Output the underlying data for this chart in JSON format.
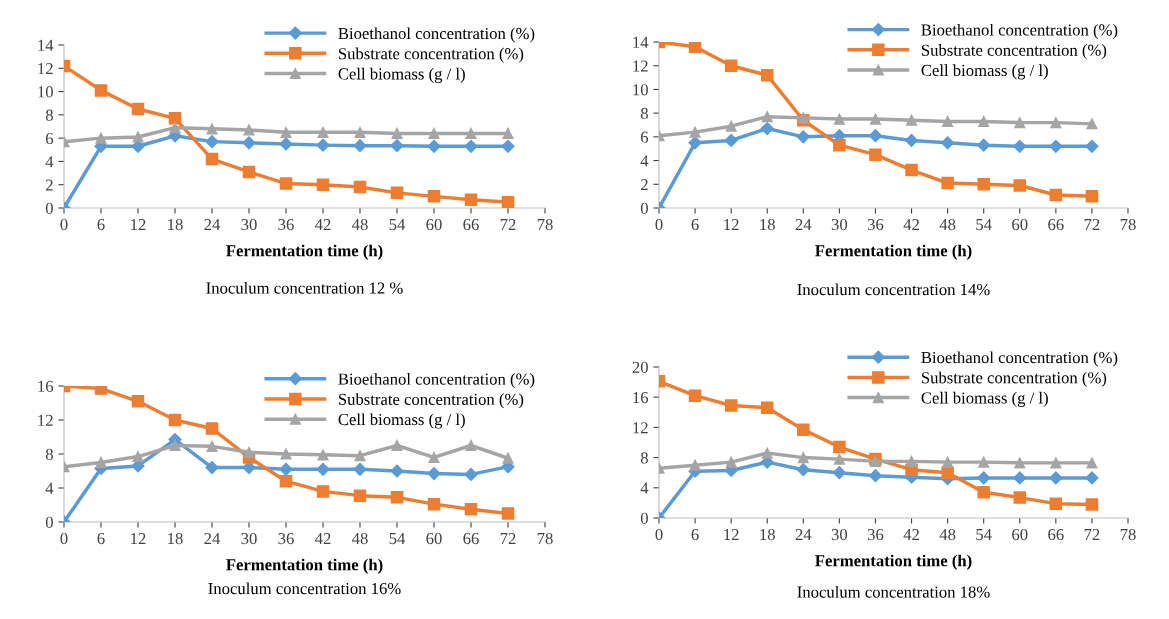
{
  "chart_data": [
    {
      "type": "line",
      "xlabel": "Fermentation time (h)",
      "annotations": [
        "Inoculum concentration 12 %"
      ],
      "x": [
        0,
        6,
        12,
        18,
        24,
        30,
        36,
        42,
        48,
        54,
        60,
        66,
        72
      ],
      "xlim": [
        0,
        78
      ],
      "xticks": [
        0,
        6,
        12,
        18,
        24,
        30,
        36,
        42,
        48,
        54,
        60,
        66,
        72,
        78
      ],
      "ylim": [
        0,
        14
      ],
      "yticks": [
        0,
        2,
        4,
        6,
        8,
        10,
        12,
        14
      ],
      "grid": false,
      "legend": "top right",
      "series": [
        {
          "name": "Bioethanol concentration (%)",
          "color": "#5b9bd5",
          "marker": "diamond",
          "values": [
            0,
            5.3,
            5.3,
            6.2,
            5.7,
            5.6,
            5.5,
            5.4,
            5.35,
            5.35,
            5.3,
            5.3,
            5.3
          ]
        },
        {
          "name": "Substrate concentration (%)",
          "color": "#ed7d31",
          "marker": "square",
          "values": [
            12.2,
            10.1,
            8.5,
            7.7,
            4.2,
            3.1,
            2.1,
            2.0,
            1.8,
            1.3,
            1.0,
            0.7,
            0.5
          ]
        },
        {
          "name": "Cell biomass (g / l)",
          "color": "#a5a5a5",
          "marker": "triangle",
          "values": [
            5.7,
            6.0,
            6.1,
            6.9,
            6.8,
            6.7,
            6.5,
            6.5,
            6.5,
            6.4,
            6.4,
            6.4,
            6.4
          ]
        }
      ]
    },
    {
      "type": "line",
      "xlabel": "Fermentation time (h)",
      "annotations": [
        "Inoculum concentration 14%"
      ],
      "x": [
        0,
        6,
        12,
        18,
        24,
        30,
        36,
        42,
        48,
        54,
        60,
        66,
        72
      ],
      "xlim": [
        0,
        78
      ],
      "xticks": [
        0,
        6,
        12,
        18,
        24,
        30,
        36,
        42,
        48,
        54,
        60,
        66,
        72,
        78
      ],
      "ylim": [
        0,
        14
      ],
      "yticks": [
        0,
        2,
        4,
        6,
        8,
        10,
        12,
        14
      ],
      "grid": false,
      "legend": "top right",
      "series": [
        {
          "name": "Bioethanol concentration (%)",
          "color": "#5b9bd5",
          "marker": "diamond",
          "values": [
            0,
            5.5,
            5.7,
            6.7,
            6.0,
            6.1,
            6.1,
            5.7,
            5.5,
            5.3,
            5.2,
            5.2,
            5.2
          ]
        },
        {
          "name": "Substrate concentration (%)",
          "color": "#ed7d31",
          "marker": "square",
          "values": [
            14.0,
            13.6,
            12.0,
            11.2,
            7.4,
            5.3,
            4.5,
            3.2,
            2.1,
            2.0,
            1.9,
            1.1,
            1.0
          ]
        },
        {
          "name": "Cell biomass (g / l)",
          "color": "#a5a5a5",
          "marker": "triangle",
          "values": [
            6.1,
            6.4,
            6.9,
            7.7,
            7.6,
            7.5,
            7.5,
            7.4,
            7.3,
            7.3,
            7.2,
            7.2,
            7.1
          ]
        }
      ]
    },
    {
      "type": "line",
      "xlabel": "Fermentation time (h)",
      "annotations": [
        "Inoculum concentration 16%"
      ],
      "x": [
        0,
        6,
        12,
        18,
        24,
        30,
        36,
        42,
        48,
        54,
        60,
        66,
        72
      ],
      "xlim": [
        0,
        78
      ],
      "xticks": [
        0,
        6,
        12,
        18,
        24,
        30,
        36,
        42,
        48,
        54,
        60,
        66,
        72,
        78
      ],
      "ylim": [
        0,
        16
      ],
      "yticks": [
        0,
        4,
        8,
        12,
        16
      ],
      "grid": false,
      "legend": "top right",
      "series": [
        {
          "name": "Bioethanol concentration (%)",
          "color": "#5b9bd5",
          "marker": "diamond",
          "values": [
            0,
            6.3,
            6.6,
            9.7,
            6.4,
            6.4,
            6.2,
            6.2,
            6.2,
            6.0,
            5.7,
            5.6,
            6.5
          ]
        },
        {
          "name": "Substrate concentration (%)",
          "color": "#ed7d31",
          "marker": "square",
          "values": [
            16.0,
            15.7,
            14.2,
            12.0,
            11.0,
            7.6,
            4.8,
            3.6,
            3.1,
            2.9,
            2.1,
            1.5,
            1.0
          ]
        },
        {
          "name": "Cell biomass (g / l)",
          "color": "#a5a5a5",
          "marker": "triangle",
          "values": [
            6.5,
            7.0,
            7.7,
            9.0,
            8.9,
            8.2,
            8.0,
            7.9,
            7.8,
            9.0,
            7.6,
            9.0,
            7.5
          ]
        }
      ]
    },
    {
      "type": "line",
      "xlabel": "Fermentation time (h)",
      "annotations": [
        "Inoculum concentration 18%"
      ],
      "x": [
        0,
        6,
        12,
        18,
        24,
        30,
        36,
        42,
        48,
        54,
        60,
        66,
        72
      ],
      "xlim": [
        0,
        78
      ],
      "xticks": [
        0,
        6,
        12,
        18,
        24,
        30,
        36,
        42,
        48,
        54,
        60,
        66,
        72,
        78
      ],
      "ylim": [
        0,
        20
      ],
      "yticks": [
        0,
        4,
        8,
        12,
        16,
        20
      ],
      "grid": false,
      "legend": "top right",
      "series": [
        {
          "name": "Bioethanol concentration (%)",
          "color": "#5b9bd5",
          "marker": "diamond",
          "values": [
            0,
            6.2,
            6.3,
            7.4,
            6.4,
            6.0,
            5.6,
            5.4,
            5.2,
            5.3,
            5.3,
            5.3,
            5.3
          ]
        },
        {
          "name": "Substrate concentration (%)",
          "color": "#ed7d31",
          "marker": "square",
          "values": [
            18.1,
            16.2,
            14.9,
            14.6,
            11.7,
            9.4,
            7.8,
            6.4,
            6.0,
            3.4,
            2.7,
            1.9,
            1.8
          ]
        },
        {
          "name": "Cell biomass (g / l)",
          "color": "#a5a5a5",
          "marker": "triangle",
          "values": [
            6.6,
            7.0,
            7.4,
            8.6,
            8.0,
            7.8,
            7.5,
            7.5,
            7.4,
            7.4,
            7.3,
            7.3,
            7.3
          ]
        }
      ]
    }
  ]
}
